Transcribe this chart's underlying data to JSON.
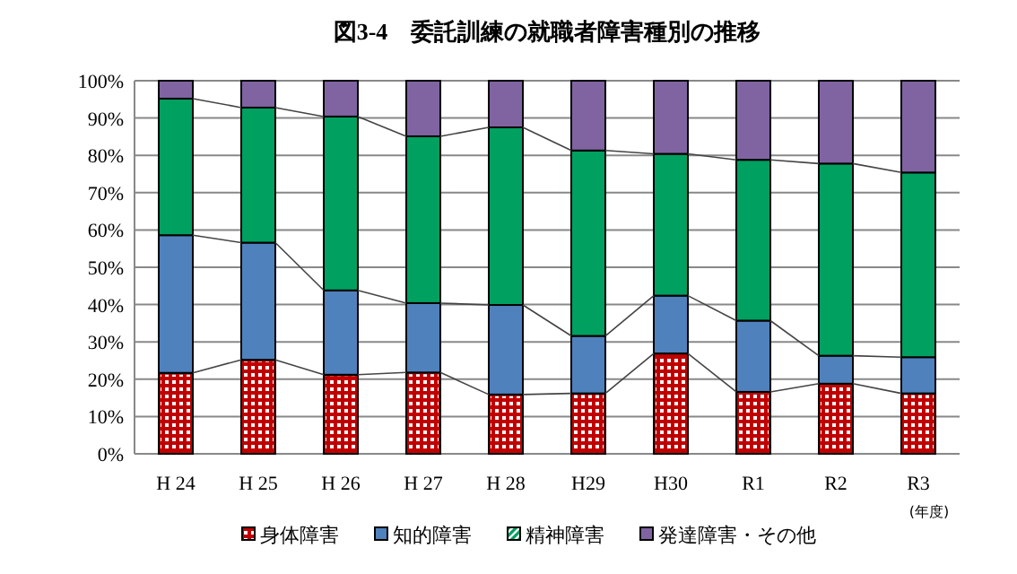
{
  "chart_data": {
    "type": "bar",
    "stacked": true,
    "title": "図3-4　委託訓練の就職者障害種別の推移",
    "xlabel": "(年度)",
    "categories": [
      "H 24",
      "H 25",
      "H 26",
      "H 27",
      "H 28",
      "H29",
      "H30",
      "R1",
      "R2",
      "R3"
    ],
    "series": [
      {
        "name": "身体障害",
        "color": "#c00000",
        "values": [
          21.7,
          25.2,
          21.2,
          21.8,
          15.9,
          16.2,
          26.9,
          16.6,
          18.8,
          16.2
        ]
      },
      {
        "name": "知的障害",
        "color": "#4f81bd",
        "values": [
          36.9,
          31.4,
          22.6,
          18.6,
          24.0,
          15.4,
          15.5,
          19.1,
          7.5,
          9.7
        ]
      },
      {
        "name": "精神障害",
        "color": "#00a060",
        "values": [
          36.6,
          36.2,
          46.6,
          44.7,
          47.6,
          49.7,
          38.0,
          43.1,
          51.5,
          49.5
        ]
      },
      {
        "name": "発達障害・その他",
        "color": "#8064a2",
        "values": [
          4.8,
          7.2,
          9.6,
          14.9,
          12.5,
          18.7,
          19.6,
          21.2,
          22.2,
          24.6
        ]
      }
    ],
    "ylim": [
      0,
      100
    ],
    "yticks": [
      {
        "value": 0,
        "label": "0%"
      },
      {
        "value": 10,
        "label": "10%"
      },
      {
        "value": 20,
        "label": "20%"
      },
      {
        "value": 30,
        "label": "30%"
      },
      {
        "value": 40,
        "label": "40%"
      },
      {
        "value": 50,
        "label": "50%"
      },
      {
        "value": 60,
        "label": "60%"
      },
      {
        "value": 70,
        "label": "70%"
      },
      {
        "value": 80,
        "label": "80%"
      },
      {
        "value": 90,
        "label": "90%"
      },
      {
        "value": 100,
        "label": "100%"
      }
    ],
    "grid": "y",
    "legend": "bottom"
  }
}
